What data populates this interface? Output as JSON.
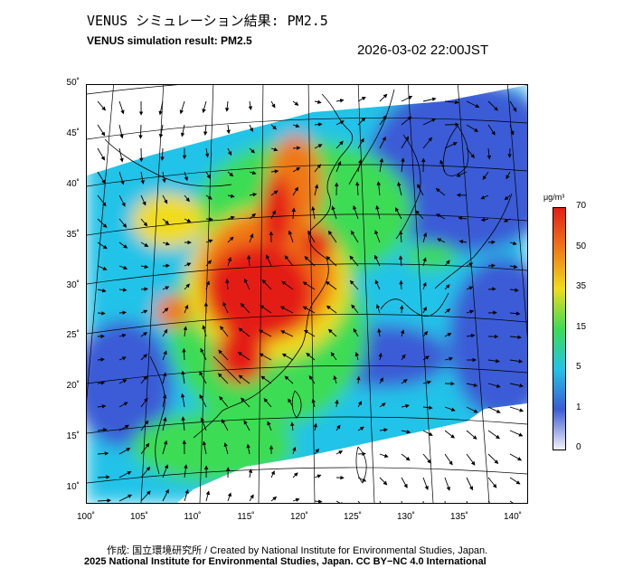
{
  "title_ja": "VENUS シミュレーション結果: PM2.5",
  "title_en": "VENUS simulation result: PM2.5",
  "timestamp": "2026-03-02 22:00JST",
  "lat_ticks": [
    {
      "value": 50,
      "label": "50˚"
    },
    {
      "value": 45,
      "label": "45˚"
    },
    {
      "value": 40,
      "label": "40˚"
    },
    {
      "value": 35,
      "label": "35˚"
    },
    {
      "value": 30,
      "label": "30˚"
    },
    {
      "value": 25,
      "label": "25˚"
    },
    {
      "value": 20,
      "label": "20˚"
    },
    {
      "value": 15,
      "label": "15˚"
    },
    {
      "value": 10,
      "label": "10˚"
    }
  ],
  "lon_ticks": [
    {
      "value": 100,
      "label": "100˚"
    },
    {
      "value": 105,
      "label": "105˚"
    },
    {
      "value": 110,
      "label": "110˚"
    },
    {
      "value": 115,
      "label": "115˚"
    },
    {
      "value": 120,
      "label": "120˚"
    },
    {
      "value": 125,
      "label": "125˚"
    },
    {
      "value": 130,
      "label": "130˚"
    },
    {
      "value": 135,
      "label": "135˚"
    },
    {
      "value": 140,
      "label": "140˚"
    }
  ],
  "colorbar": {
    "unit": "μg/m³",
    "ticks": [
      "70",
      "50",
      "35",
      "15",
      "5",
      "1",
      "0"
    ]
  },
  "credit_line_1": "作成: 国立環境研究所 / Created by National Institute for Environmental Studies, Japan.",
  "credit_line_2": "2025 National Institute for Environmental Studies, Japan. CC BY−NC 4.0 International",
  "colors": {
    "level_0": "#f2f2f8",
    "level_1": "#3a5bd6",
    "level_5": "#22c3e8",
    "level_15": "#3ddc54",
    "level_35": "#f0dc1a",
    "level_50": "#f07818",
    "level_70": "#e41e14"
  }
}
